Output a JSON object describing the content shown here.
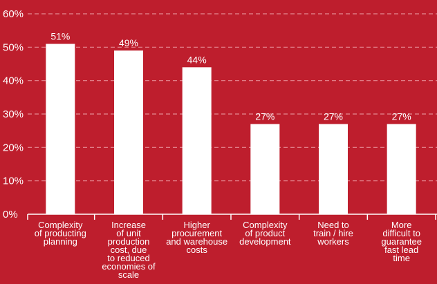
{
  "chart_data": {
    "type": "bar",
    "categories": [
      "Complexity of producting planning",
      "Increase of unit production cost, due to reduced economies of scale",
      "Higher procurement and warehouse costs",
      "Complexity of product development",
      "Need to train / hire workers",
      "More difficult to guarantee fast lead time"
    ],
    "category_lines": [
      [
        "Complexity",
        "of producting",
        "planning"
      ],
      [
        "Increase",
        "of unit",
        "production",
        "cost, due",
        "to reduced",
        "economies of",
        "scale"
      ],
      [
        "Higher",
        "procurement",
        "and warehouse",
        "costs"
      ],
      [
        "Complexity",
        "of product",
        "development"
      ],
      [
        "Need to",
        "train / hire",
        "workers"
      ],
      [
        "More",
        "difficult to",
        "guarantee",
        "fast lead",
        "time"
      ]
    ],
    "values": [
      51,
      49,
      44,
      27,
      27,
      27
    ],
    "data_labels": [
      "51%",
      "49%",
      "44%",
      "27%",
      "27%",
      "27%"
    ],
    "yticks": [
      "0%",
      "10%",
      "20%",
      "30%",
      "40%",
      "50%",
      "60%"
    ],
    "ylim": [
      0,
      60
    ],
    "grid": true,
    "colors": {
      "background": "#be1e2d",
      "bar": "#ffffff",
      "grid": "#e58a92",
      "text": "#ffffff"
    }
  }
}
